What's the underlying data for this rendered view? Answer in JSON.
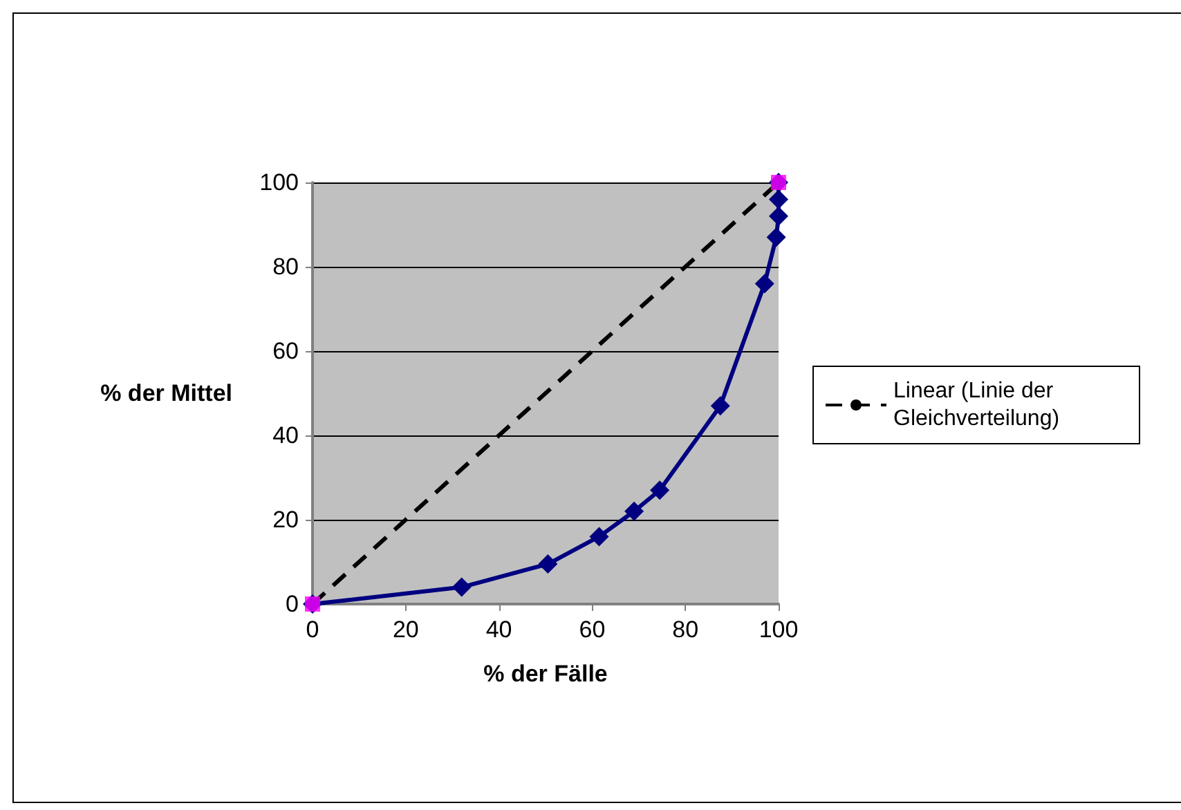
{
  "chart_data": {
    "type": "line",
    "xlabel": "% der Fälle",
    "ylabel": "% der Mittel",
    "xlim": [
      0,
      100
    ],
    "xticks": [
      0,
      20,
      40,
      60,
      80,
      100
    ],
    "ylim": [
      0,
      100
    ],
    "yticks": [
      0,
      20,
      40,
      60,
      80,
      100
    ],
    "grid": "y",
    "legend": "right",
    "series": [
      {
        "color": "#000080",
        "marker": "diamond",
        "x": [
          0,
          32,
          50.5,
          61.5,
          69,
          74.5,
          87.5,
          97,
          99.5,
          100,
          100,
          100
        ],
        "values": [
          0,
          4,
          9.5,
          16,
          22,
          27,
          47,
          76,
          87,
          92,
          96,
          100
        ]
      },
      {
        "type": "scatter",
        "color": "#ff00ff",
        "marker": "square",
        "x": [
          0,
          100
        ],
        "values": [
          0,
          100
        ]
      },
      {
        "name": "Linear (Linie der Gleichverteilung)",
        "color": "#000000",
        "marker": "none",
        "line_style": "dashed",
        "x": [
          0,
          100
        ],
        "values": [
          0,
          100
        ]
      }
    ]
  }
}
